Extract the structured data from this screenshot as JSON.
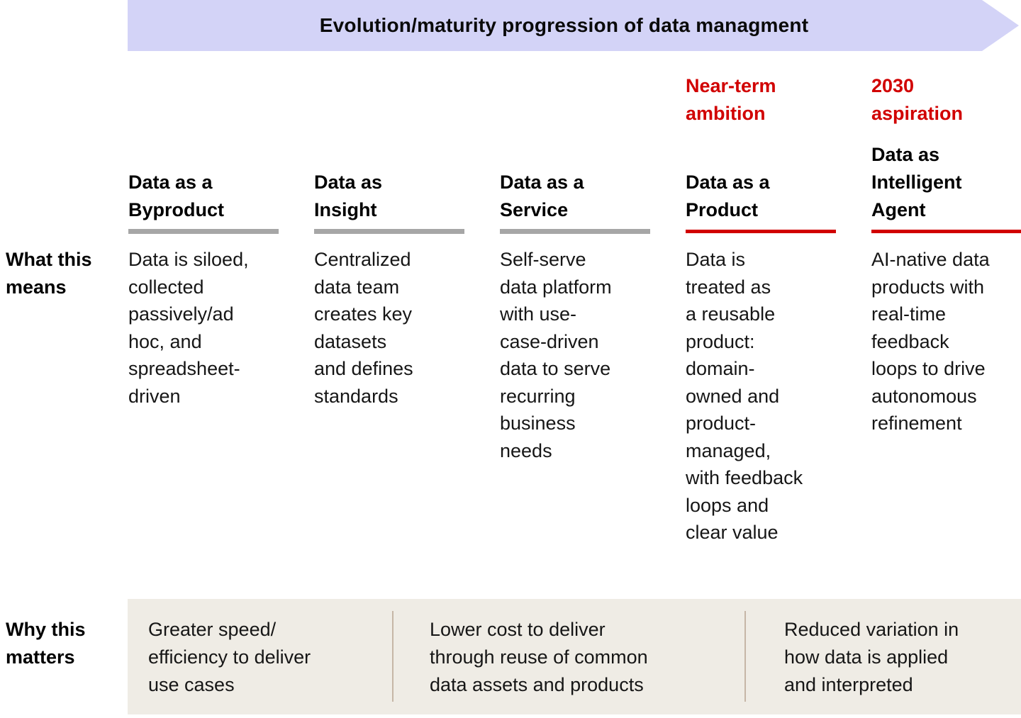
{
  "banner": {
    "title": "Evolution/maturity progression of data managment"
  },
  "accent_colors": {
    "banner_lavender": "#D3D3F7",
    "highlight_red": "#D10000",
    "underline_gray": "#A6A6A6",
    "panel_beige": "#EFECE5",
    "divider_tan": "#C6B6A6"
  },
  "row_labels": {
    "what_this_means": "What this\nmeans",
    "why_this_matters": "Why this\nmatters"
  },
  "columns": [
    {
      "eyebrow": "",
      "title": "Data as a\nByproduct",
      "underline": "gray",
      "means": "Data is siloed,\ncollected\npassively/ad\nhoc, and\nspreadsheet-\ndriven"
    },
    {
      "eyebrow": "",
      "title": "Data as\nInsight",
      "underline": "gray",
      "means": "Centralized\ndata team\ncreates key\ndatasets\nand defines\nstandards"
    },
    {
      "eyebrow": "",
      "title": "Data as a\nService",
      "underline": "gray",
      "means": "Self-serve\ndata platform\nwith use-\ncase-driven\ndata to serve\nrecurring\nbusiness\nneeds"
    },
    {
      "eyebrow": "Near-term\nambition",
      "title": "Data as a\nProduct",
      "underline": "red",
      "means": "Data is\ntreated as\na reusable\nproduct:\ndomain-\nowned and\nproduct-\nmanaged,\nwith feedback\nloops and\nclear value"
    },
    {
      "eyebrow": "2030\naspiration",
      "title": "Data as\nIntelligent\nAgent",
      "underline": "red",
      "means": "AI-native data\nproducts with\nreal-time\nfeedback\nloops to drive\nautonomous\nrefinement"
    }
  ],
  "why_this_matters_items": [
    "Greater speed/\nefficiency to deliver\nuse cases",
    "Lower cost to deliver\nthrough reuse of common\ndata assets and products",
    "Reduced variation in\nhow data is applied\nand interpreted"
  ]
}
